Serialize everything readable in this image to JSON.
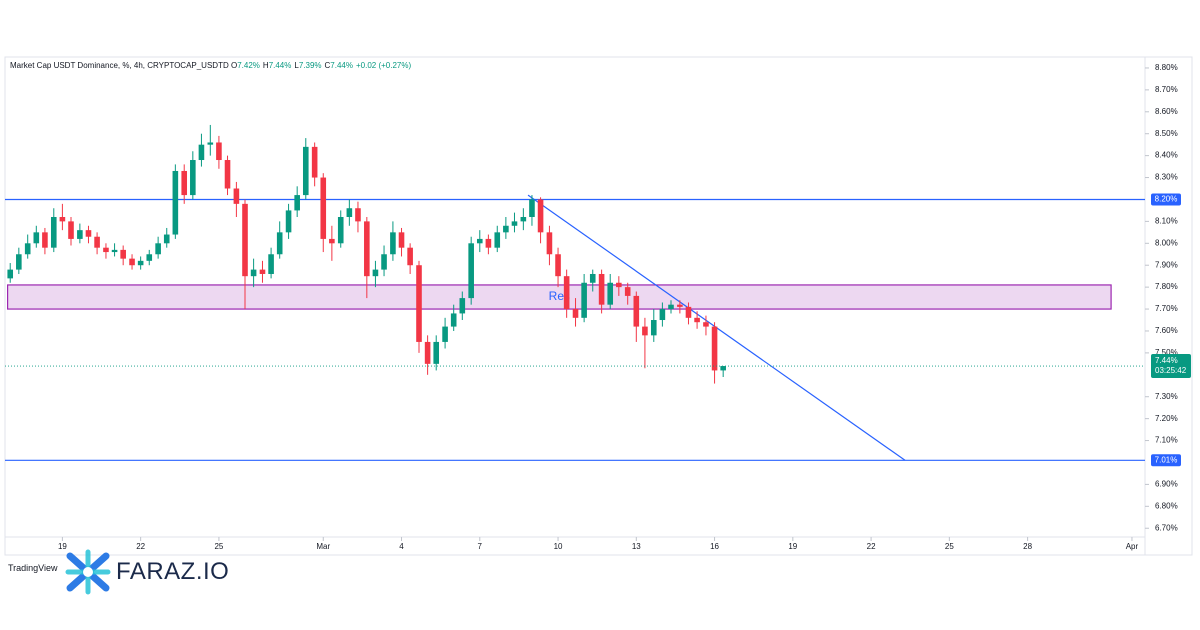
{
  "chart_data": {
    "type": "candlestick",
    "legend": {
      "symbol": "Market Cap USDT Dominance, %, 4h, CRYPTOCAP_USDTD",
      "ohlc": [
        {
          "label": "O",
          "value": "7.42%"
        },
        {
          "label": "H",
          "value": "7.44%"
        },
        {
          "label": "L",
          "value": "7.39%"
        },
        {
          "label": "C",
          "value": "7.44%"
        }
      ],
      "change": "+0.02 (+0.27%)"
    },
    "up_color": "#089981",
    "down_color": "#f23645",
    "x": [
      48,
      48.33,
      48.67,
      49,
      49.33,
      49.67,
      50,
      50.33,
      50.67,
      51,
      51.33,
      51.67,
      52,
      52.33,
      52.67,
      53,
      53.33,
      53.67,
      54,
      54.33,
      54.67,
      55,
      55.33,
      55.67,
      56,
      56.33,
      56.67,
      57,
      57.33,
      57.67,
      58,
      58.33,
      58.67,
      59,
      59.33,
      59.67,
      60,
      60.33,
      60.67,
      61,
      61.33,
      61.67,
      62,
      62.33,
      62.67,
      63,
      63.33,
      63.67,
      64,
      64.33,
      64.67,
      65,
      65.33,
      65.67,
      66,
      66.33,
      66.67,
      67,
      67.33,
      67.67,
      68,
      68.33,
      68.67,
      69,
      69.33,
      69.67,
      70,
      70.33,
      70.67,
      71,
      71.33,
      71.67,
      72,
      72.33,
      72.67,
      73,
      73.33,
      73.67,
      74,
      74.33,
      74.67,
      75,
      75.33
    ],
    "open": [
      7.84,
      7.88,
      7.95,
      8.0,
      8.05,
      7.98,
      8.12,
      8.1,
      8.02,
      8.06,
      8.03,
      7.98,
      7.96,
      7.97,
      7.93,
      7.9,
      7.92,
      7.95,
      8.0,
      8.04,
      8.33,
      8.22,
      8.38,
      8.45,
      8.46,
      8.38,
      8.25,
      8.18,
      7.85,
      7.88,
      7.86,
      7.95,
      8.05,
      8.15,
      8.22,
      8.44,
      8.3,
      8.02,
      8.0,
      8.12,
      8.16,
      8.1,
      7.85,
      7.88,
      7.95,
      8.05,
      7.98,
      7.9,
      7.55,
      7.45,
      7.55,
      7.62,
      7.68,
      7.75,
      8.0,
      8.02,
      7.98,
      8.05,
      8.08,
      8.1,
      8.12,
      8.2,
      8.05,
      7.95,
      7.85,
      7.7,
      7.66,
      7.82,
      7.86,
      7.72,
      7.82,
      7.8,
      7.76,
      7.62,
      7.58,
      7.65,
      7.7,
      7.72,
      7.71,
      7.66,
      7.64,
      7.62,
      7.42
    ],
    "high": [
      7.91,
      7.98,
      8.04,
      8.08,
      8.07,
      8.16,
      8.18,
      8.12,
      8.09,
      8.08,
      8.05,
      8.0,
      8.0,
      7.99,
      7.95,
      7.94,
      7.97,
      8.03,
      8.07,
      8.36,
      8.36,
      8.42,
      8.5,
      8.54,
      8.49,
      8.4,
      8.28,
      8.2,
      7.93,
      7.92,
      7.98,
      8.1,
      8.18,
      8.26,
      8.48,
      8.46,
      8.32,
      8.08,
      8.15,
      8.2,
      8.19,
      8.12,
      7.92,
      7.99,
      8.1,
      8.07,
      8.0,
      7.92,
      7.58,
      7.58,
      7.66,
      7.72,
      7.78,
      8.03,
      8.06,
      8.04,
      8.08,
      8.12,
      8.14,
      8.16,
      8.22,
      8.21,
      8.08,
      7.98,
      7.88,
      7.75,
      7.86,
      7.88,
      7.88,
      7.86,
      7.85,
      7.82,
      7.78,
      7.66,
      7.7,
      7.73,
      7.74,
      7.74,
      7.73,
      7.69,
      7.67,
      7.64,
      7.44
    ],
    "low": [
      7.82,
      7.86,
      7.93,
      7.98,
      7.95,
      7.96,
      8.06,
      7.99,
      8.0,
      8.0,
      7.95,
      7.93,
      7.94,
      7.9,
      7.88,
      7.88,
      7.9,
      7.93,
      7.98,
      8.02,
      8.18,
      8.2,
      8.35,
      8.4,
      8.34,
      8.22,
      8.12,
      7.7,
      7.8,
      7.82,
      7.84,
      7.93,
      8.02,
      8.12,
      8.2,
      8.26,
      7.96,
      7.92,
      7.98,
      8.08,
      8.05,
      7.75,
      7.8,
      7.85,
      7.92,
      7.94,
      7.86,
      7.5,
      7.4,
      7.42,
      7.52,
      7.6,
      7.65,
      7.72,
      7.96,
      7.95,
      7.96,
      8.02,
      8.05,
      8.06,
      8.08,
      8.0,
      7.9,
      7.8,
      7.66,
      7.62,
      7.64,
      7.78,
      7.68,
      7.7,
      7.76,
      7.72,
      7.55,
      7.43,
      7.55,
      7.62,
      7.68,
      7.68,
      7.63,
      7.61,
      7.58,
      7.36,
      7.39
    ],
    "close": [
      7.88,
      7.95,
      8.0,
      8.05,
      7.98,
      8.12,
      8.1,
      8.02,
      8.06,
      8.03,
      7.98,
      7.96,
      7.97,
      7.93,
      7.9,
      7.92,
      7.95,
      8.0,
      8.04,
      8.33,
      8.22,
      8.38,
      8.45,
      8.46,
      8.38,
      8.25,
      8.18,
      7.85,
      7.88,
      7.86,
      7.95,
      8.05,
      8.15,
      8.22,
      8.44,
      8.3,
      8.02,
      8.0,
      8.12,
      8.16,
      8.1,
      7.85,
      7.88,
      7.95,
      8.05,
      7.98,
      7.9,
      7.55,
      7.45,
      7.55,
      7.62,
      7.68,
      7.75,
      8.0,
      8.02,
      7.98,
      8.05,
      8.08,
      8.1,
      8.12,
      8.2,
      8.05,
      7.95,
      7.85,
      7.7,
      7.66,
      7.82,
      7.86,
      7.72,
      7.82,
      7.8,
      7.76,
      7.62,
      7.58,
      7.65,
      7.7,
      7.72,
      7.71,
      7.66,
      7.64,
      7.62,
      7.42,
      7.44
    ],
    "xlim": [
      47.8,
      91.5
    ],
    "xticks": [
      {
        "value": 50,
        "label": "19"
      },
      {
        "value": 53,
        "label": "22"
      },
      {
        "value": 56,
        "label": "25"
      },
      {
        "value": 60,
        "label": "Mar"
      },
      {
        "value": 63,
        "label": "4"
      },
      {
        "value": 66,
        "label": "7"
      },
      {
        "value": 69,
        "label": "10"
      },
      {
        "value": 72,
        "label": "13"
      },
      {
        "value": 75,
        "label": "16"
      },
      {
        "value": 78,
        "label": "19"
      },
      {
        "value": 81,
        "label": "22"
      },
      {
        "value": 84,
        "label": "25"
      },
      {
        "value": 87,
        "label": "28"
      },
      {
        "value": 91,
        "label": "Apr"
      }
    ],
    "ylim": [
      6.66,
      8.85
    ],
    "yticks": [
      {
        "value": 8.8,
        "label": "8.80%"
      },
      {
        "value": 8.7,
        "label": "8.70%"
      },
      {
        "value": 8.6,
        "label": "8.60%"
      },
      {
        "value": 8.5,
        "label": "8.50%"
      },
      {
        "value": 8.4,
        "label": "8.40%"
      },
      {
        "value": 8.3,
        "label": "8.30%"
      },
      {
        "value": 8.1,
        "label": "8.10%"
      },
      {
        "value": 8.0,
        "label": "8.00%"
      },
      {
        "value": 7.9,
        "label": "7.90%"
      },
      {
        "value": 7.8,
        "label": "7.80%"
      },
      {
        "value": 7.7,
        "label": "7.70%"
      },
      {
        "value": 7.6,
        "label": "7.60%"
      },
      {
        "value": 7.5,
        "label": "7.50%"
      },
      {
        "value": 7.3,
        "label": "7.30%"
      },
      {
        "value": 7.2,
        "label": "7.20%"
      },
      {
        "value": 7.1,
        "label": "7.10%"
      },
      {
        "value": 6.9,
        "label": "6.90%"
      },
      {
        "value": 6.8,
        "label": "6.80%"
      },
      {
        "value": 6.7,
        "label": "6.70%"
      }
    ],
    "hlines": [
      {
        "value": 8.2,
        "label": "8.20%",
        "color": "#2962ff"
      },
      {
        "value": 7.01,
        "label": "7.01%",
        "color": "#2962ff"
      }
    ],
    "zones": [
      {
        "label": "Res",
        "y": [
          7.7,
          7.81
        ],
        "x": [
          47.9,
          90.2
        ],
        "color": "#9c27b0"
      }
    ],
    "trendlines": [
      {
        "x": [
          67.85,
          82.3
        ],
        "y": [
          8.22,
          7.01
        ],
        "color": "#2962ff"
      }
    ],
    "last_price": {
      "value": 7.44,
      "label": "7.44%",
      "countdown": "03:25:42"
    }
  },
  "branding": {
    "platform": "TradingView",
    "site": "FARAZ.IO"
  }
}
